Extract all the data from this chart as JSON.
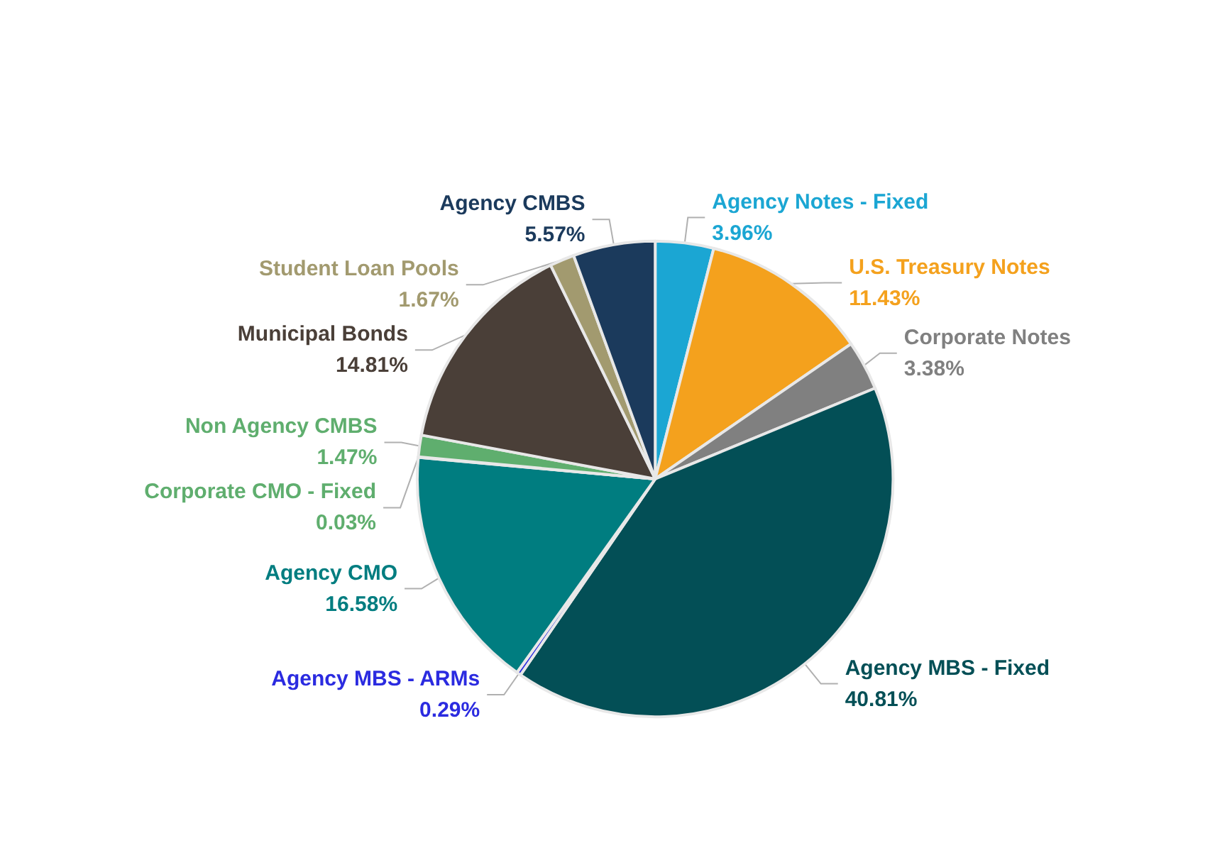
{
  "chart_data": {
    "type": "pie",
    "categories": [
      "Agency Notes - Fixed",
      "U.S. Treasury Notes",
      "Corporate Notes",
      "Agency MBS - Fixed",
      "Agency MBS - ARMs",
      "Agency CMO",
      "Corporate CMO - Fixed",
      "Non Agency CMBS",
      "Municipal Bonds",
      "Student Loan Pools",
      "Agency CMBS"
    ],
    "values": [
      3.96,
      11.43,
      3.38,
      40.81,
      0.29,
      16.58,
      0.03,
      1.47,
      14.81,
      1.67,
      5.57
    ],
    "colors": [
      "#1ba6d3",
      "#f4a11d",
      "#808080",
      "#034f56",
      "#2b2be0",
      "#007d80",
      "#5fae6e",
      "#5fae6e",
      "#4a3f38",
      "#a29a6f",
      "#1b3a5c"
    ],
    "value_labels": [
      "3.96%",
      "11.43%",
      "3.38%",
      "40.81%",
      "0.29%",
      "16.58%",
      "0.03%",
      "1.47%",
      "14.81%",
      "1.67%",
      "5.57%"
    ],
    "legend": false
  }
}
